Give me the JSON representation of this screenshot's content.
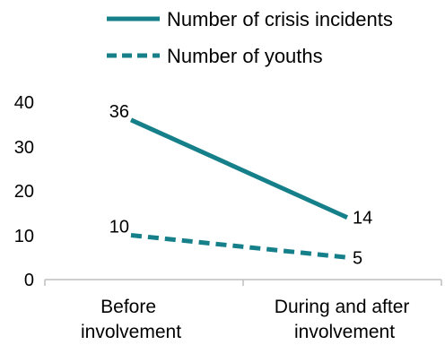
{
  "chart_data": {
    "type": "line",
    "categories": [
      "Before involvement",
      "During and after involvement"
    ],
    "category_lines": [
      [
        "Before",
        "involvement"
      ],
      [
        "During and after",
        "involvement"
      ]
    ],
    "series": [
      {
        "name": "Number of crisis incidents",
        "values": [
          36,
          14
        ],
        "data_labels": [
          "36",
          "14"
        ],
        "color": "#16808A",
        "line_style": "solid"
      },
      {
        "name": "Number of youths",
        "values": [
          10,
          5
        ],
        "data_labels": [
          "10",
          "5"
        ],
        "color": "#16808A",
        "line_style": "dashed"
      }
    ],
    "y_ticks": [
      "0",
      "10",
      "20",
      "30",
      "40"
    ],
    "ylim": [
      0,
      40
    ],
    "grid": false,
    "legend_position": "top"
  }
}
